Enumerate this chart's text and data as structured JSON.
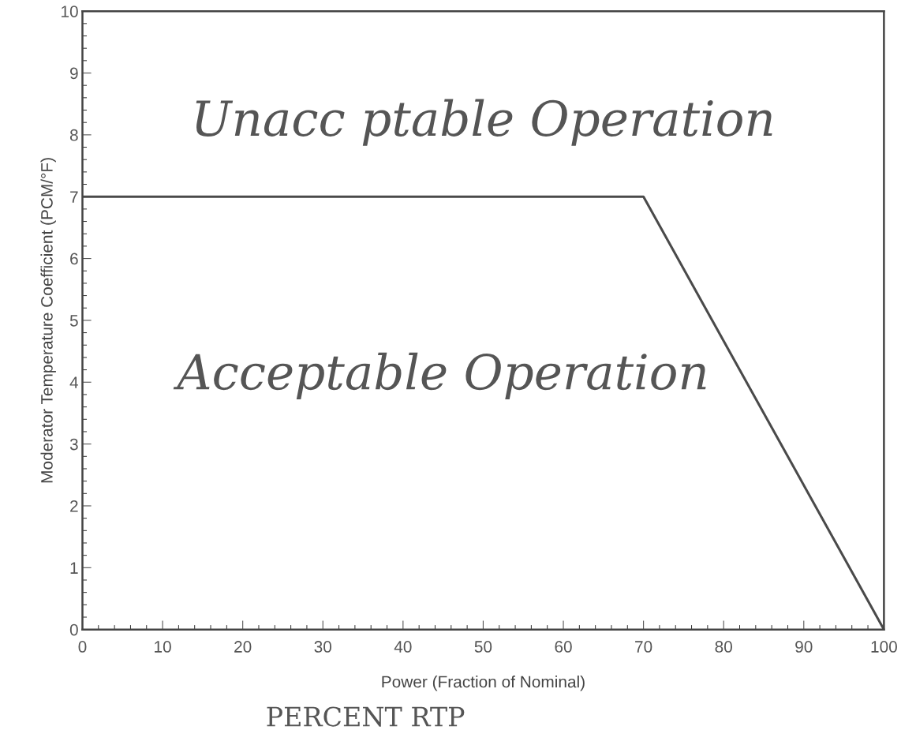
{
  "chart_data": {
    "type": "line",
    "x": [
      0,
      70,
      100
    ],
    "series": [
      {
        "color": "#4a4a4a",
        "values": [
          7,
          7,
          0
        ]
      }
    ],
    "xlim": [
      0,
      100
    ],
    "xticks": [
      0,
      10,
      20,
      30,
      40,
      50,
      60,
      70,
      80,
      90,
      100
    ],
    "ylim": [
      0,
      10
    ],
    "yticks": [
      0,
      1,
      2,
      3,
      4,
      5,
      6,
      7,
      8,
      9,
      10
    ],
    "xlabel": "Power (Fraction of Nominal)",
    "ylabel": "Moderator Temperature Coefficient (PCM/°F)",
    "annotations": [
      "Unacc ptable Operation",
      "Acceptable Operation",
      "PERCENT RTP"
    ],
    "grid": false,
    "legend": false,
    "marker": "none",
    "line_style": "solid"
  }
}
